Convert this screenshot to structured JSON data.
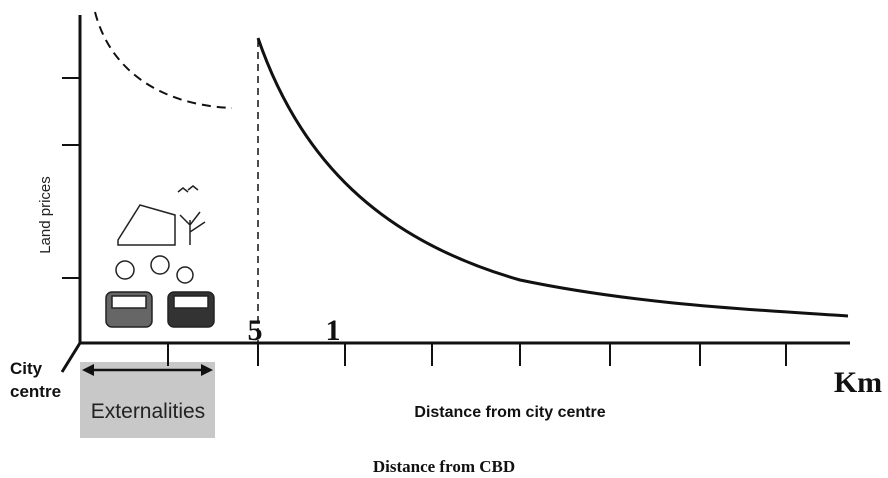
{
  "axis": {
    "y_label": "Land prices",
    "x_label": "Distance from city centre",
    "unit": "Km"
  },
  "markers": [
    "5",
    "1"
  ],
  "origin_label": [
    "City",
    "centre"
  ],
  "zone_label": "Externalities",
  "caption": "Distance from CBD"
}
